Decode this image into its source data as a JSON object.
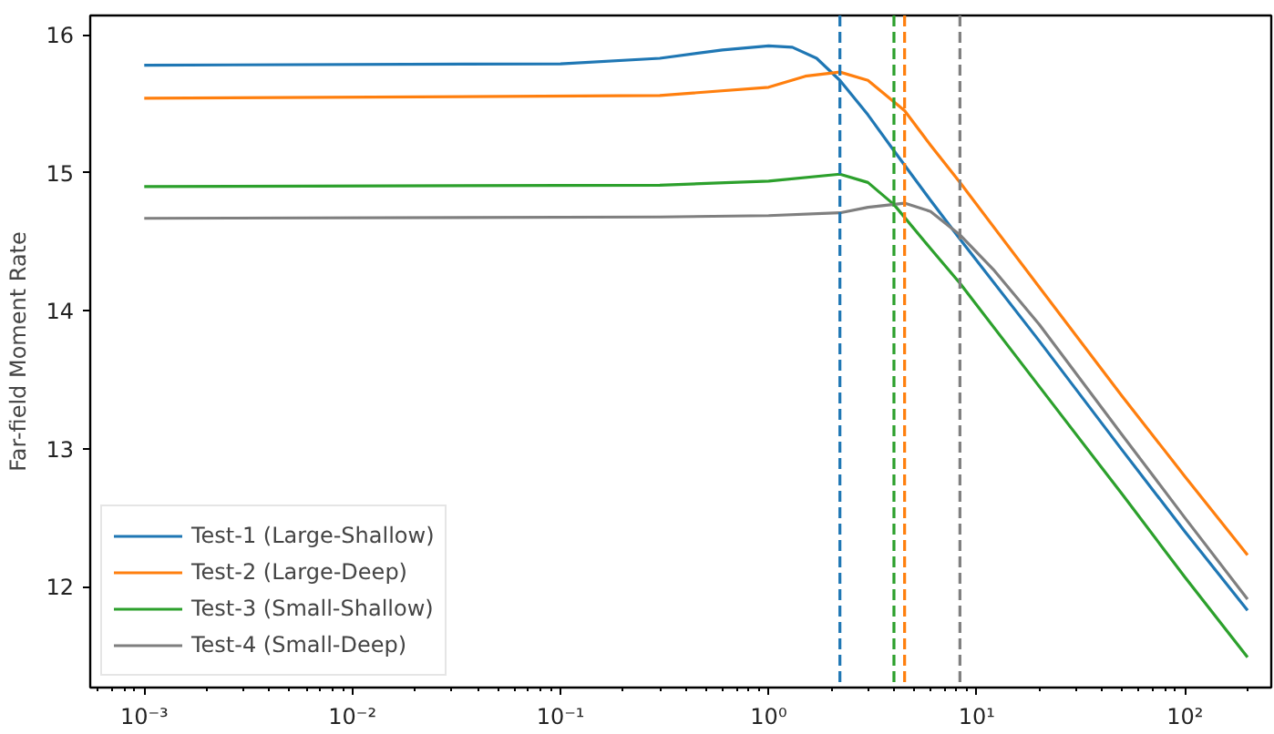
{
  "chart_data": {
    "type": "line",
    "ylabel": "Far-field Moment Rate",
    "log": "x",
    "grid": false,
    "legend": "bottom left",
    "line_style": "solid",
    "xlim": [
      0.00055,
      260
    ],
    "ylim": [
      11.27,
      16.14
    ],
    "xticks": [
      {
        "value": 0.001,
        "label": "10⁻³"
      },
      {
        "value": 0.01,
        "label": "10⁻²"
      },
      {
        "value": 0.1,
        "label": "10⁻¹"
      },
      {
        "value": 1,
        "label": "10⁰"
      },
      {
        "value": 10,
        "label": "10¹"
      },
      {
        "value": 100,
        "label": "10²"
      }
    ],
    "yticks": [
      12,
      13,
      14,
      15,
      16
    ],
    "series": [
      {
        "name": "Test-1 (Large-Shallow)",
        "color": "#1f77b4",
        "x": [
          0.001,
          0.1,
          0.3,
          0.6,
          1.0,
          1.3,
          1.7,
          2.2,
          3,
          4,
          6,
          8.3,
          20,
          50,
          100,
          200
        ],
        "values": [
          15.78,
          15.79,
          15.83,
          15.89,
          15.92,
          15.91,
          15.83,
          15.67,
          15.42,
          15.16,
          14.8,
          14.52,
          13.78,
          12.99,
          12.4,
          11.83
        ]
      },
      {
        "name": "Test-2 (Large-Deep)",
        "color": "#ff7f0e",
        "x": [
          0.001,
          0.3,
          1.0,
          1.5,
          2.2,
          3,
          4.5,
          6,
          8.3,
          20,
          50,
          100,
          200
        ],
        "values": [
          15.54,
          15.56,
          15.62,
          15.7,
          15.73,
          15.67,
          15.45,
          15.2,
          14.93,
          14.17,
          13.38,
          12.8,
          12.23
        ]
      },
      {
        "name": "Test-3 (Small-Shallow)",
        "color": "#2ca02c",
        "x": [
          0.001,
          0.3,
          1.0,
          2.2,
          3,
          4,
          6,
          8.3,
          20,
          50,
          100,
          200
        ],
        "values": [
          14.9,
          14.91,
          14.94,
          14.99,
          14.93,
          14.77,
          14.45,
          14.2,
          13.45,
          12.67,
          12.07,
          11.49
        ]
      },
      {
        "name": "Test-4 (Small-Deep)",
        "color": "#7f7f7f",
        "x": [
          0.001,
          0.3,
          1.0,
          2.2,
          3,
          4.5,
          6,
          8.3,
          12,
          20,
          50,
          100,
          200
        ],
        "values": [
          14.67,
          14.68,
          14.69,
          14.71,
          14.75,
          14.78,
          14.72,
          14.55,
          14.3,
          13.9,
          13.1,
          12.5,
          11.91
        ]
      }
    ],
    "ref_lines": [
      {
        "axis": "x",
        "value": 2.2,
        "color": "#1f77b4",
        "line_style": "dashed"
      },
      {
        "axis": "x",
        "value": 4.0,
        "color": "#2ca02c",
        "line_style": "dashed"
      },
      {
        "axis": "x",
        "value": 4.5,
        "color": "#ff7f0e",
        "line_style": "dashed"
      },
      {
        "axis": "x",
        "value": 8.3,
        "color": "#7f7f7f",
        "line_style": "dashed"
      }
    ]
  }
}
